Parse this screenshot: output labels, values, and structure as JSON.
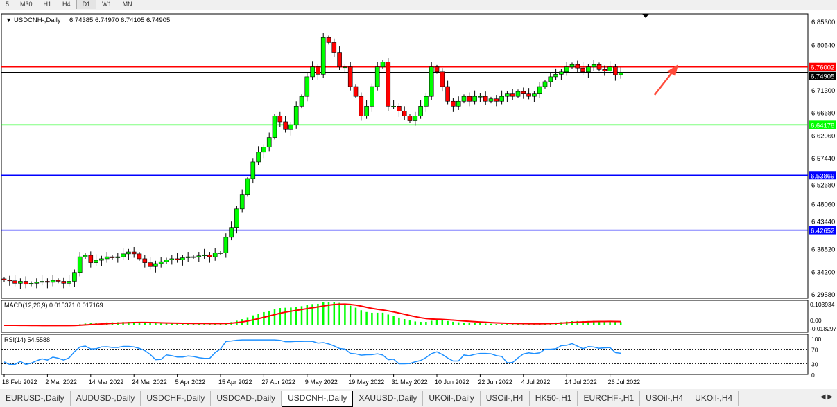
{
  "toolbar": {
    "timeframes": [
      "5",
      "M30",
      "H1",
      "H4",
      "D1",
      "W1",
      "MN"
    ],
    "active": "D1"
  },
  "chart": {
    "symbol": "USDCNH-,Daily",
    "ohlc": "6.74385 6.74970 6.74105 6.74905",
    "price_axis": [
      "6.85300",
      "6.80540",
      "6.71300",
      "6.66680",
      "6.62060",
      "6.57440",
      "6.52680",
      "6.48060",
      "6.43440",
      "6.38820",
      "6.34200",
      "6.29580"
    ],
    "price_range": [
      6.2958,
      6.853
    ],
    "levels": [
      {
        "value": "6.76002",
        "color": "#ff0000"
      },
      {
        "value": "6.74905",
        "color": "#000000",
        "current": true
      },
      {
        "value": "6.64178",
        "color": "#00ff00"
      },
      {
        "value": "6.53869",
        "color": "#0000ff"
      },
      {
        "value": "6.42652",
        "color": "#0000ff"
      }
    ],
    "bull_color": "#00ff00",
    "bear_color": "#ff0000",
    "closes": [
      6.325,
      6.323,
      6.318,
      6.322,
      6.316,
      6.318,
      6.32,
      6.322,
      6.32,
      6.324,
      6.322,
      6.318,
      6.322,
      6.34,
      6.372,
      6.375,
      6.36,
      6.365,
      6.368,
      6.372,
      6.37,
      6.372,
      6.378,
      6.382,
      6.378,
      6.368,
      6.36,
      6.352,
      6.358,
      6.362,
      6.366,
      6.368,
      6.366,
      6.37,
      6.372,
      6.372,
      6.374,
      6.376,
      6.372,
      6.38,
      6.38,
      6.412,
      6.432,
      6.47,
      6.5,
      6.532,
      6.566,
      6.586,
      6.596,
      6.616,
      6.66,
      6.648,
      6.632,
      6.642,
      6.68,
      6.7,
      6.74,
      6.76,
      6.745,
      6.82,
      6.81,
      6.79,
      6.76,
      6.76,
      6.72,
      6.7,
      6.66,
      6.68,
      6.72,
      6.76,
      6.77,
      6.68,
      6.68,
      6.67,
      6.66,
      6.65,
      6.66,
      6.68,
      6.7,
      6.76,
      6.75,
      6.72,
      6.69,
      6.68,
      6.69,
      6.7,
      6.69,
      6.7,
      6.7,
      6.69,
      6.695,
      6.69,
      6.7,
      6.705,
      6.7,
      6.71,
      6.705,
      6.7,
      6.705,
      6.72,
      6.73,
      6.74,
      6.745,
      6.75,
      6.76,
      6.765,
      6.758,
      6.75,
      6.76,
      6.765,
      6.755,
      6.752,
      6.76,
      6.744,
      6.749
    ],
    "trend_arrow_color": "#ff4a3a"
  },
  "macd": {
    "label": "MACD(12,26,9) 0.015371 0.017169",
    "axis_top": "0.103934",
    "axis_bottom": "0.00",
    "axis_bottom2": "-0.018297",
    "hist_color": "#00ff00",
    "signal_color": "#ff0000"
  },
  "rsi": {
    "label": "RSI(14) 54.5588",
    "axis": [
      "100",
      "70",
      "30",
      "0"
    ],
    "color": "#1e90ff"
  },
  "dates": [
    "18 Feb 2022",
    "2 Mar 2022",
    "14 Mar 2022",
    "24 Mar 2022",
    "5 Apr 2022",
    "15 Apr 2022",
    "27 Apr 2022",
    "9 May 2022",
    "19 May 2022",
    "31 May 2022",
    "10 Jun 2022",
    "22 Jun 2022",
    "4 Jul 2022",
    "14 Jul 2022",
    "26 Jul 2022"
  ],
  "tabs": [
    "EURUSD-,Daily",
    "AUDUSD-,Daily",
    "USDCHF-,Daily",
    "USDCAD-,Daily",
    "USDCNH-,Daily",
    "XAUUSD-,Daily",
    "UKOil-,Daily",
    "USOil-,H4",
    "HK50-,H1",
    "EURCHF-,H1",
    "USOil-,H4",
    "UKOil-,H4"
  ],
  "active_tab": "USDCNH-,Daily"
}
